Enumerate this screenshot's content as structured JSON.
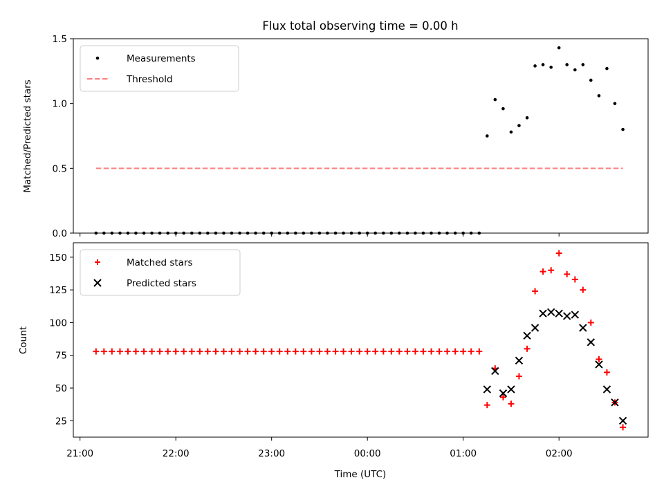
{
  "chart_data": {
    "title": "Flux total observing time = 0.00 h",
    "x_axis": {
      "label": "Time (UTC)",
      "ticks": [
        {
          "hour": 21,
          "label": "21:00"
        },
        {
          "hour": 22,
          "label": "22:00"
        },
        {
          "hour": 23,
          "label": "23:00"
        },
        {
          "hour": 24,
          "label": "00:00"
        },
        {
          "hour": 25,
          "label": "01:00"
        },
        {
          "hour": 26,
          "label": "02:00"
        }
      ],
      "range_hours": [
        20.93,
        26.93
      ]
    },
    "panels": [
      {
        "type": "scatter",
        "ylabel": "Matched/Predicted stars",
        "ylim": [
          0,
          1.5
        ],
        "yticks": [
          "0.0",
          "0.5",
          "1.0",
          "1.5"
        ],
        "ytick_values": [
          0,
          0.5,
          1.0,
          1.5
        ],
        "legend_position": "upper-left",
        "legend": [
          {
            "label": "Measurements",
            "series": "measurements"
          },
          {
            "label": "Threshold",
            "series": "threshold"
          }
        ],
        "series": {
          "measurements": {
            "color": "#000000",
            "marker": "dot",
            "points": [
              [
                21.167,
                0
              ],
              [
                21.25,
                0
              ],
              [
                21.333,
                0
              ],
              [
                21.417,
                0
              ],
              [
                21.5,
                0
              ],
              [
                21.583,
                0
              ],
              [
                21.667,
                0
              ],
              [
                21.75,
                0
              ],
              [
                21.833,
                0
              ],
              [
                21.917,
                0
              ],
              [
                22.0,
                0
              ],
              [
                22.083,
                0
              ],
              [
                22.167,
                0
              ],
              [
                22.25,
                0
              ],
              [
                22.333,
                0
              ],
              [
                22.417,
                0
              ],
              [
                22.5,
                0
              ],
              [
                22.583,
                0
              ],
              [
                22.667,
                0
              ],
              [
                22.75,
                0
              ],
              [
                22.833,
                0
              ],
              [
                22.917,
                0
              ],
              [
                23.0,
                0
              ],
              [
                23.083,
                0
              ],
              [
                23.167,
                0
              ],
              [
                23.25,
                0
              ],
              [
                23.333,
                0
              ],
              [
                23.417,
                0
              ],
              [
                23.5,
                0
              ],
              [
                23.583,
                0
              ],
              [
                23.667,
                0
              ],
              [
                23.75,
                0
              ],
              [
                23.833,
                0
              ],
              [
                23.917,
                0
              ],
              [
                24.0,
                0
              ],
              [
                24.083,
                0
              ],
              [
                24.167,
                0
              ],
              [
                24.25,
                0
              ],
              [
                24.333,
                0
              ],
              [
                24.417,
                0
              ],
              [
                24.5,
                0
              ],
              [
                24.583,
                0
              ],
              [
                24.667,
                0
              ],
              [
                24.75,
                0
              ],
              [
                24.833,
                0
              ],
              [
                24.917,
                0
              ],
              [
                25.0,
                0
              ],
              [
                25.083,
                0
              ],
              [
                25.167,
                0
              ],
              [
                25.25,
                0.75
              ],
              [
                25.333,
                1.03
              ],
              [
                25.417,
                0.96
              ],
              [
                25.5,
                0.78
              ],
              [
                25.583,
                0.83
              ],
              [
                25.667,
                0.89
              ],
              [
                25.75,
                1.29
              ],
              [
                25.833,
                1.3
              ],
              [
                25.917,
                1.28
              ],
              [
                26.0,
                1.43
              ],
              [
                26.083,
                1.3
              ],
              [
                26.167,
                1.26
              ],
              [
                26.25,
                1.3
              ],
              [
                26.333,
                1.18
              ],
              [
                26.417,
                1.06
              ],
              [
                26.5,
                1.27
              ],
              [
                26.583,
                1.0
              ],
              [
                26.667,
                0.8
              ]
            ]
          },
          "threshold": {
            "color": "#ff7f7f",
            "style": "dashed",
            "value": 0.5,
            "x_range": [
              21.167,
              26.667
            ]
          }
        }
      },
      {
        "type": "scatter",
        "ylabel": "Count",
        "ylim": [
          12.5,
          161
        ],
        "yticks": [
          "25",
          "50",
          "75",
          "100",
          "125",
          "150"
        ],
        "ytick_values": [
          25,
          50,
          75,
          100,
          125,
          150
        ],
        "legend_position": "upper-left",
        "legend": [
          {
            "label": "Matched stars",
            "series": "matched"
          },
          {
            "label": "Predicted stars",
            "series": "predicted"
          }
        ],
        "series": {
          "matched": {
            "color": "#ff0000",
            "marker": "plus",
            "points": [
              [
                21.167,
                78
              ],
              [
                21.25,
                78
              ],
              [
                21.333,
                78
              ],
              [
                21.417,
                78
              ],
              [
                21.5,
                78
              ],
              [
                21.583,
                78
              ],
              [
                21.667,
                78
              ],
              [
                21.75,
                78
              ],
              [
                21.833,
                78
              ],
              [
                21.917,
                78
              ],
              [
                22.0,
                78
              ],
              [
                22.083,
                78
              ],
              [
                22.167,
                78
              ],
              [
                22.25,
                78
              ],
              [
                22.333,
                78
              ],
              [
                22.417,
                78
              ],
              [
                22.5,
                78
              ],
              [
                22.583,
                78
              ],
              [
                22.667,
                78
              ],
              [
                22.75,
                78
              ],
              [
                22.833,
                78
              ],
              [
                22.917,
                78
              ],
              [
                23.0,
                78
              ],
              [
                23.083,
                78
              ],
              [
                23.167,
                78
              ],
              [
                23.25,
                78
              ],
              [
                23.333,
                78
              ],
              [
                23.417,
                78
              ],
              [
                23.5,
                78
              ],
              [
                23.583,
                78
              ],
              [
                23.667,
                78
              ],
              [
                23.75,
                78
              ],
              [
                23.833,
                78
              ],
              [
                23.917,
                78
              ],
              [
                24.0,
                78
              ],
              [
                24.083,
                78
              ],
              [
                24.167,
                78
              ],
              [
                24.25,
                78
              ],
              [
                24.333,
                78
              ],
              [
                24.417,
                78
              ],
              [
                24.5,
                78
              ],
              [
                24.583,
                78
              ],
              [
                24.667,
                78
              ],
              [
                24.75,
                78
              ],
              [
                24.833,
                78
              ],
              [
                24.917,
                78
              ],
              [
                25.0,
                78
              ],
              [
                25.083,
                78
              ],
              [
                25.167,
                78
              ],
              [
                25.25,
                37
              ],
              [
                25.333,
                65
              ],
              [
                25.417,
                43
              ],
              [
                25.5,
                38
              ],
              [
                25.583,
                59
              ],
              [
                25.667,
                80
              ],
              [
                25.75,
                124
              ],
              [
                25.833,
                139
              ],
              [
                25.917,
                140
              ],
              [
                26.0,
                153
              ],
              [
                26.083,
                137
              ],
              [
                26.167,
                133
              ],
              [
                26.25,
                125
              ],
              [
                26.333,
                100
              ],
              [
                26.417,
                72
              ],
              [
                26.5,
                62
              ],
              [
                26.583,
                39
              ],
              [
                26.667,
                20
              ]
            ]
          },
          "predicted": {
            "color": "#000000",
            "marker": "x",
            "points": [
              [
                25.25,
                49
              ],
              [
                25.333,
                63
              ],
              [
                25.417,
                46
              ],
              [
                25.5,
                49
              ],
              [
                25.583,
                71
              ],
              [
                25.667,
                90
              ],
              [
                25.75,
                96
              ],
              [
                25.833,
                107
              ],
              [
                25.917,
                108
              ],
              [
                26.0,
                107
              ],
              [
                26.083,
                105
              ],
              [
                26.167,
                106
              ],
              [
                26.25,
                96
              ],
              [
                26.333,
                85
              ],
              [
                26.417,
                68
              ],
              [
                26.5,
                49
              ],
              [
                26.583,
                39
              ],
              [
                26.667,
                25
              ]
            ]
          }
        }
      }
    ]
  }
}
